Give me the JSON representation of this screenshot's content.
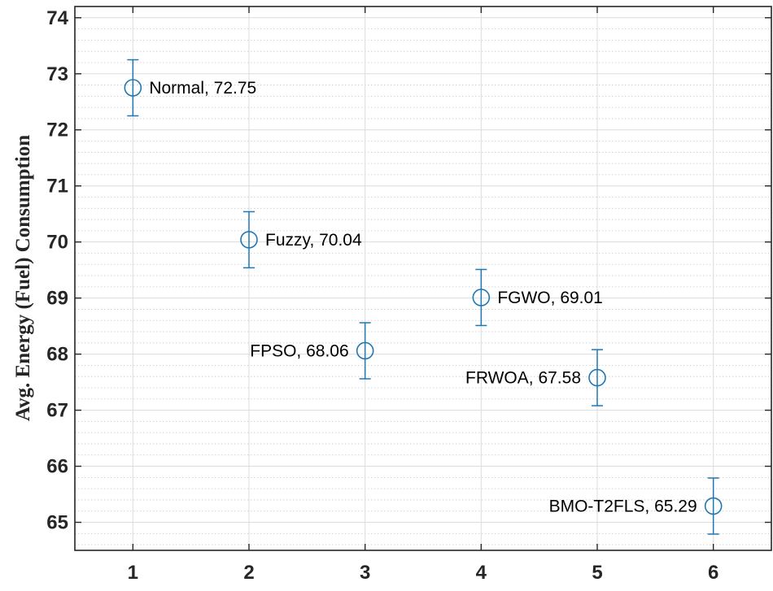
{
  "chart_data": {
    "type": "scatter",
    "title": "",
    "xlabel": "",
    "ylabel": "Avg. Energy (Fuel) Consumption",
    "xlim": [
      0.5,
      6.5
    ],
    "ylim": [
      64.5,
      74.2
    ],
    "x_ticks": [
      1,
      2,
      3,
      4,
      5,
      6
    ],
    "y_ticks": [
      65,
      66,
      67,
      68,
      69,
      70,
      71,
      72,
      73,
      74
    ],
    "y_minor_step": 0.2,
    "grid": "major and minor",
    "marker": "open circle",
    "color": "#1f77b4",
    "points": [
      {
        "x": 1,
        "y": 72.75,
        "err": 0.5,
        "label": "Normal, 72.75",
        "label_side": "right"
      },
      {
        "x": 2,
        "y": 70.04,
        "err": 0.5,
        "label": "Fuzzy, 70.04",
        "label_side": "right"
      },
      {
        "x": 3,
        "y": 68.06,
        "err": 0.5,
        "label": "FPSO, 68.06",
        "label_side": "left"
      },
      {
        "x": 4,
        "y": 69.01,
        "err": 0.5,
        "label": "FGWO, 69.01",
        "label_side": "right"
      },
      {
        "x": 5,
        "y": 67.58,
        "err": 0.5,
        "label": "FRWOA, 67.58",
        "label_side": "left"
      },
      {
        "x": 6,
        "y": 65.29,
        "err": 0.5,
        "label": "BMO-T2FLS, 65.29",
        "label_side": "left"
      }
    ]
  }
}
